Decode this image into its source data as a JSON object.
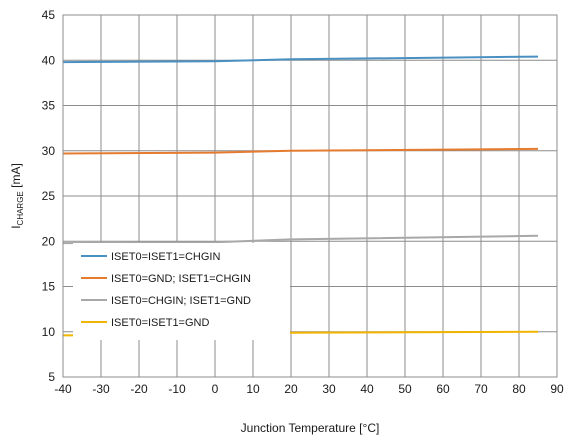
{
  "chart_data": {
    "type": "line",
    "xlabel": "Junction Temperature [°C]",
    "ylabel_main": "I",
    "ylabel_sub": "CHARGE",
    "ylabel_unit": " [mA]",
    "xlim": [
      -40,
      90
    ],
    "ylim": [
      5,
      45
    ],
    "xticks": [
      -40,
      -30,
      -20,
      -10,
      0,
      10,
      20,
      30,
      40,
      50,
      60,
      70,
      80,
      90
    ],
    "yticks": [
      5,
      10,
      15,
      20,
      25,
      30,
      35,
      40,
      45
    ],
    "grid": true,
    "legend_position": "lower-left",
    "series": [
      {
        "name": "ISET0=ISET1=CHGIN",
        "color": "#4a90c2",
        "x": [
          -40,
          0,
          20,
          85
        ],
        "y": [
          39.8,
          39.9,
          40.1,
          40.4
        ]
      },
      {
        "name": "ISET0=GND; ISET1=CHGIN",
        "color": "#e57b2f",
        "x": [
          -40,
          0,
          20,
          85
        ],
        "y": [
          29.7,
          29.8,
          30.0,
          30.2
        ]
      },
      {
        "name": "ISET0=CHGIN; ISET1=GND",
        "color": "#a8a8a8",
        "x": [
          -40,
          0,
          20,
          85
        ],
        "y": [
          19.8,
          19.9,
          20.2,
          20.6
        ]
      },
      {
        "name": "ISET0=ISET1=GND",
        "color": "#f2b400",
        "x": [
          -40,
          0,
          20,
          85
        ],
        "y": [
          9.6,
          9.7,
          9.9,
          10.0
        ]
      }
    ]
  }
}
